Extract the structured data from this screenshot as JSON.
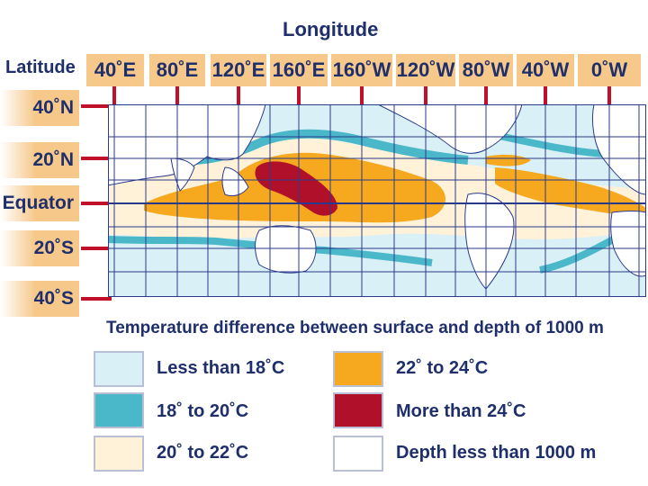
{
  "longitude_title": "Longitude",
  "latitude_title": "Latitude",
  "longitudes": [
    "40˚E",
    "80˚E",
    "120˚E",
    "160˚E",
    "160˚W",
    "120˚W",
    "80˚W",
    "40˚W",
    "0˚W"
  ],
  "latitudes": [
    "40˚N",
    "20˚N",
    "Equator",
    "20˚S",
    "40˚S"
  ],
  "legend": {
    "title": "Temperature difference between surface and depth of 1000 m",
    "items": [
      {
        "label": "Less than 18˚C",
        "color": "#d9f0f7"
      },
      {
        "label": "18˚ to 20˚C",
        "color": "#4bb8c9"
      },
      {
        "label": "20˚ to 22˚C",
        "color": "#fff2d9"
      },
      {
        "label": "22˚ to 24˚C",
        "color": "#f6a81e"
      },
      {
        "label": "More than 24˚C",
        "color": "#b0102a"
      },
      {
        "label": "Depth less than 1000 m",
        "color": "#ffffff"
      }
    ]
  },
  "colors": {
    "text": "#1f2f6b",
    "tab": "#f6c88a",
    "tick": "#c0102a",
    "grid": "#2a3a8a"
  }
}
